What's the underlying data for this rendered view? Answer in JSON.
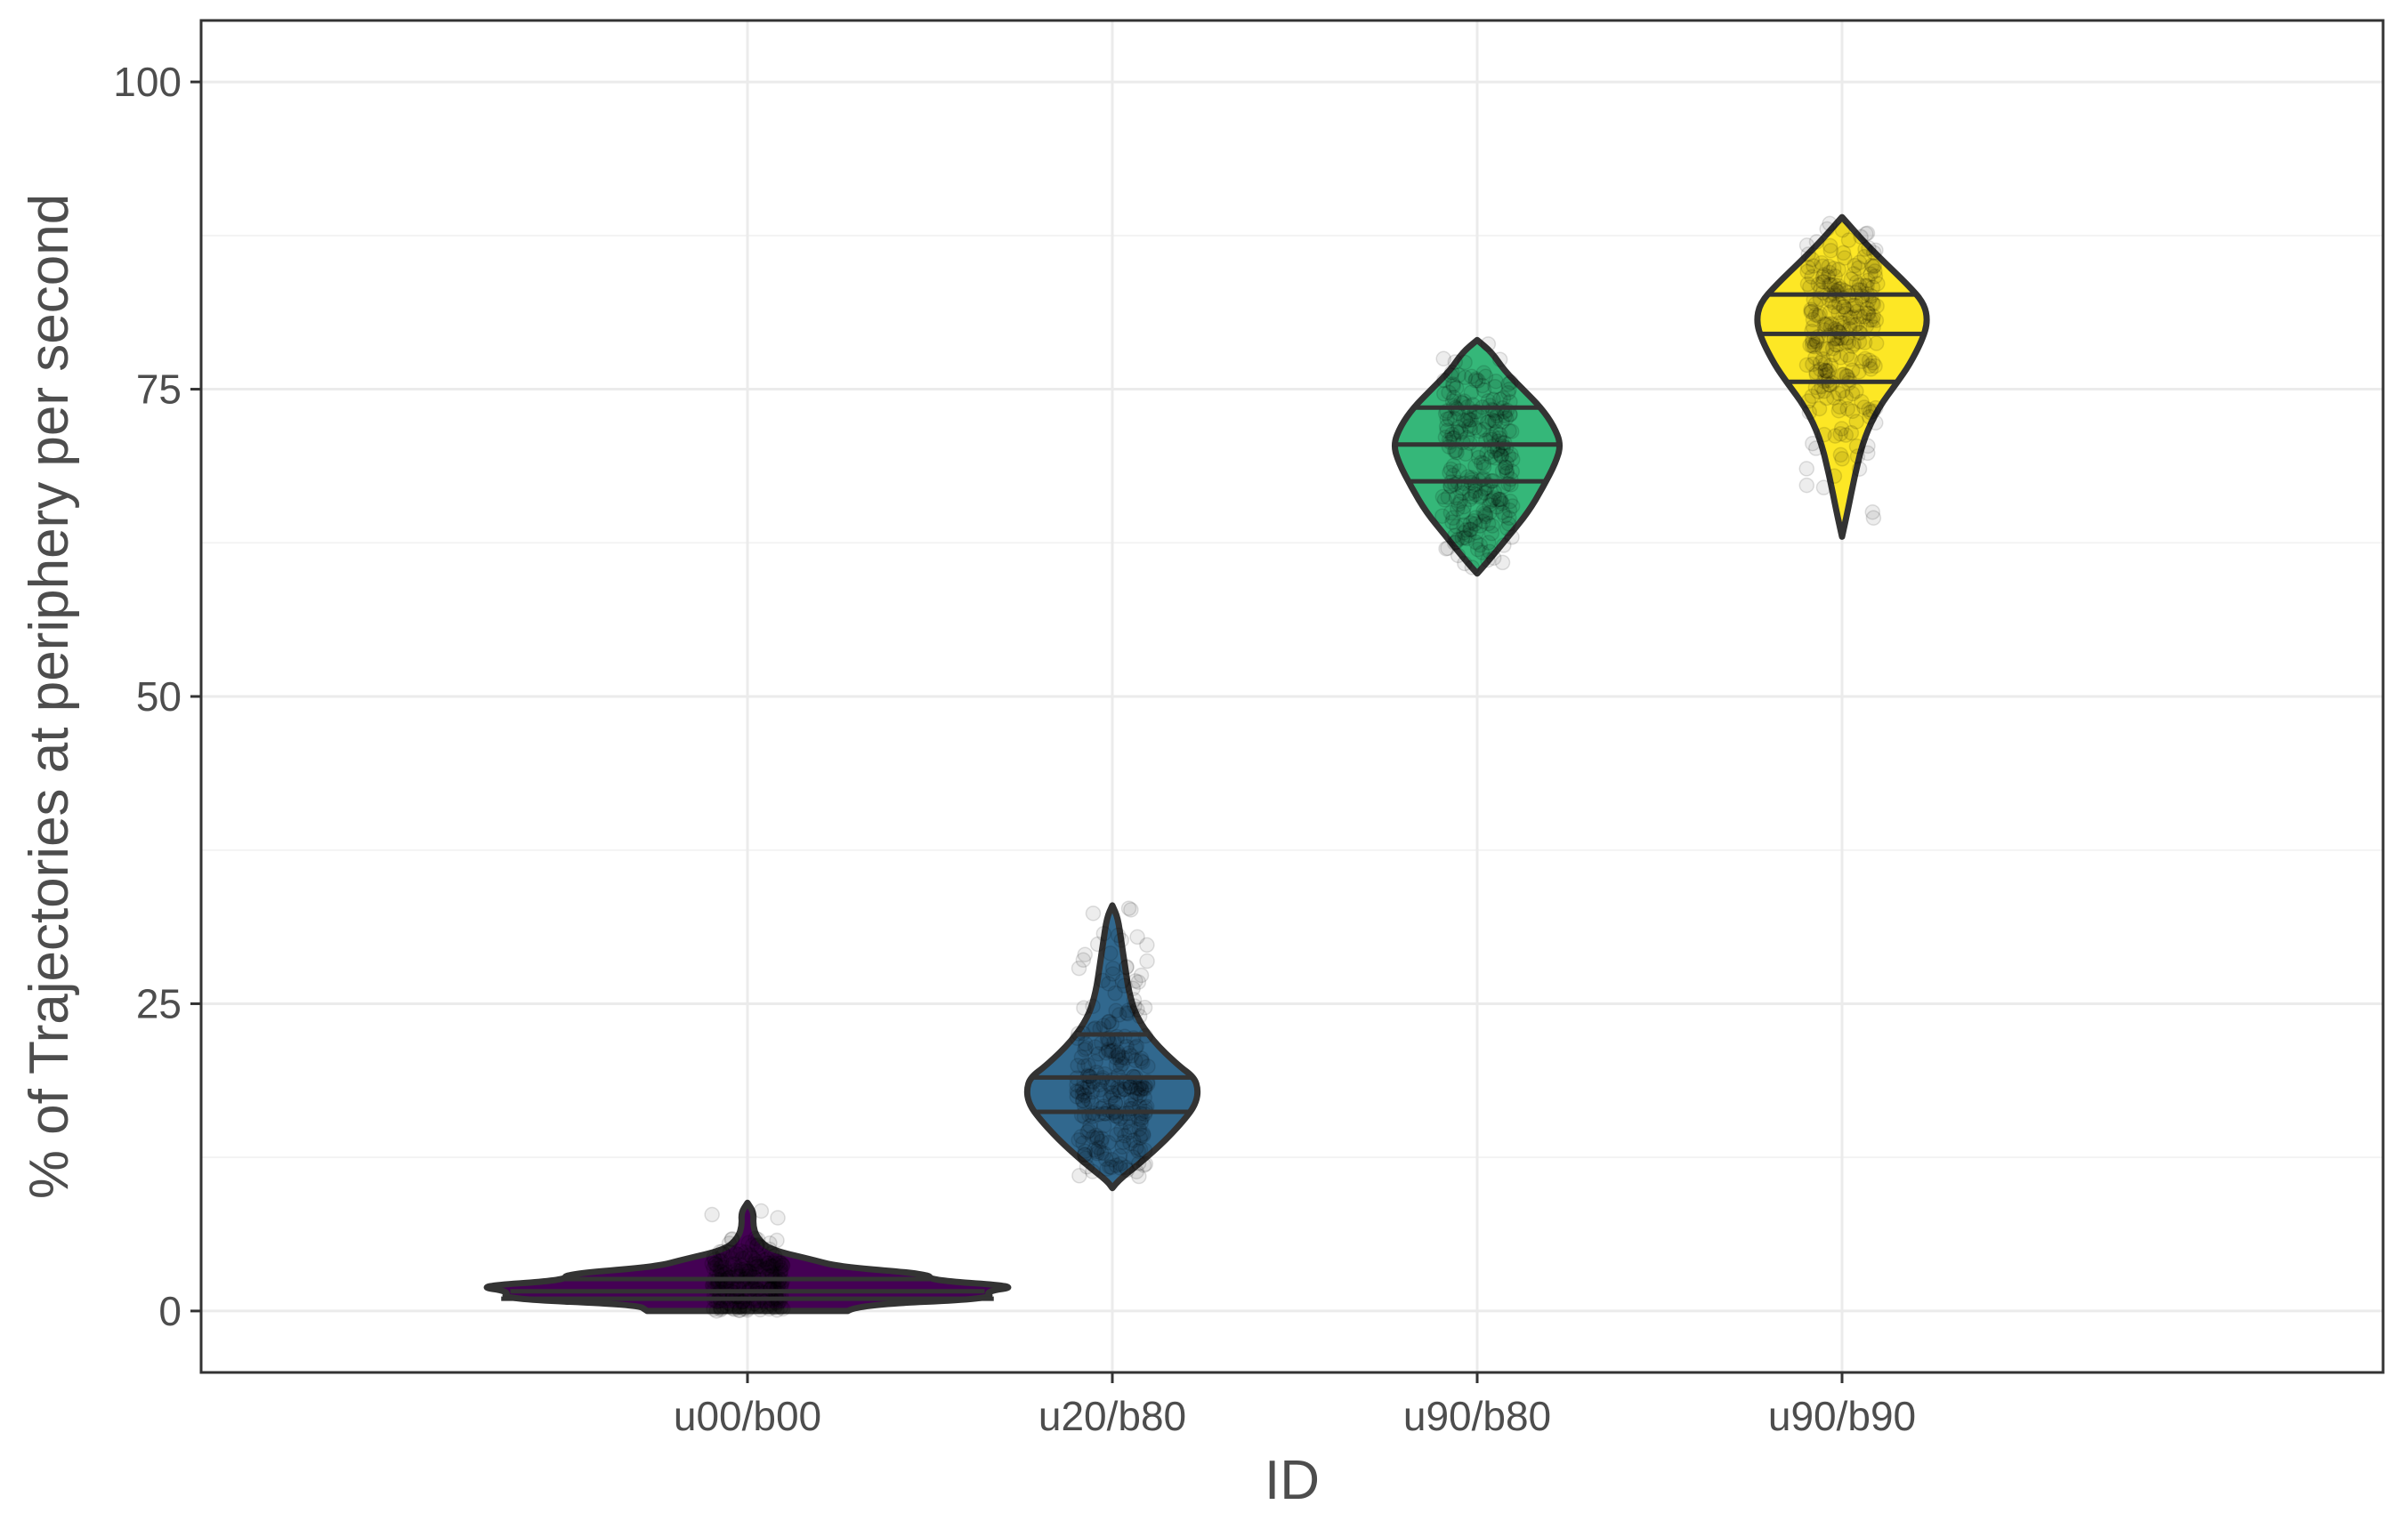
{
  "chart_data": {
    "type": "violin",
    "xlabel": "ID",
    "ylabel": "% of Trajectories at periphery per second",
    "categories": [
      "u00/b00",
      "u20/b80",
      "u90/b80",
      "u90/b90"
    ],
    "ylim": [
      -5,
      105
    ],
    "yticks": [
      0,
      25,
      50,
      75,
      100
    ],
    "yticks_minor": [
      12.5,
      37.5,
      62.5,
      87.5
    ],
    "grid": true,
    "legend": "none",
    "series": [
      {
        "category": "u00/b00",
        "color": "#440154",
        "quantiles": [
          1.0,
          1.6,
          2.6
        ],
        "profile": [
          {
            "y": 0.0,
            "w": 0.55
          },
          {
            "y": 0.5,
            "w": 0.6
          },
          {
            "y": 1.0,
            "w": 1.35
          },
          {
            "y": 1.6,
            "w": 1.3
          },
          {
            "y": 2.0,
            "w": 1.5
          },
          {
            "y": 2.5,
            "w": 1.0
          },
          {
            "y": 3.0,
            "w": 1.0
          },
          {
            "y": 3.6,
            "w": 0.5
          },
          {
            "y": 4.2,
            "w": 0.35
          },
          {
            "y": 5.0,
            "w": 0.12
          },
          {
            "y": 6.0,
            "w": 0.05
          },
          {
            "y": 7.0,
            "w": 0.03
          },
          {
            "y": 8.0,
            "w": 0.035
          },
          {
            "y": 8.8,
            "w": 0.0
          }
        ]
      },
      {
        "category": "u20/b80",
        "color": "#31688e",
        "quantiles": [
          16.2,
          19.0,
          22.5
        ],
        "profile": [
          {
            "y": 10.0,
            "w": 0.0
          },
          {
            "y": 10.6,
            "w": 0.03
          },
          {
            "y": 12.0,
            "w": 0.15
          },
          {
            "y": 14.0,
            "w": 0.3
          },
          {
            "y": 16.0,
            "w": 0.42
          },
          {
            "y": 17.0,
            "w": 0.46
          },
          {
            "y": 18.0,
            "w": 0.47
          },
          {
            "y": 19.0,
            "w": 0.45
          },
          {
            "y": 20.0,
            "w": 0.36
          },
          {
            "y": 22.0,
            "w": 0.22
          },
          {
            "y": 24.0,
            "w": 0.13
          },
          {
            "y": 26.0,
            "w": 0.09
          },
          {
            "y": 28.0,
            "w": 0.07
          },
          {
            "y": 30.0,
            "w": 0.05
          },
          {
            "y": 32.0,
            "w": 0.03
          },
          {
            "y": 33.0,
            "w": 0.0
          }
        ]
      },
      {
        "category": "u90/b80",
        "color": "#35b779",
        "quantiles": [
          67.5,
          70.5,
          73.5
        ],
        "profile": [
          {
            "y": 60.0,
            "w": 0.0
          },
          {
            "y": 61.0,
            "w": 0.06
          },
          {
            "y": 63.0,
            "w": 0.17
          },
          {
            "y": 65.0,
            "w": 0.28
          },
          {
            "y": 67.0,
            "w": 0.36
          },
          {
            "y": 69.0,
            "w": 0.43
          },
          {
            "y": 70.5,
            "w": 0.46
          },
          {
            "y": 72.0,
            "w": 0.42
          },
          {
            "y": 73.5,
            "w": 0.35
          },
          {
            "y": 75.0,
            "w": 0.25
          },
          {
            "y": 76.5,
            "w": 0.15
          },
          {
            "y": 78.0,
            "w": 0.08
          },
          {
            "y": 79.0,
            "w": 0.0
          }
        ]
      },
      {
        "category": "u90/b90",
        "color": "#fde725",
        "quantiles": [
          75.6,
          79.5,
          82.7
        ],
        "profile": [
          {
            "y": 63.0,
            "w": 0.0
          },
          {
            "y": 65.0,
            "w": 0.03
          },
          {
            "y": 68.0,
            "w": 0.07
          },
          {
            "y": 71.0,
            "w": 0.12
          },
          {
            "y": 73.5,
            "w": 0.2
          },
          {
            "y": 75.5,
            "w": 0.3
          },
          {
            "y": 77.0,
            "w": 0.37
          },
          {
            "y": 79.0,
            "w": 0.44
          },
          {
            "y": 80.5,
            "w": 0.47
          },
          {
            "y": 82.0,
            "w": 0.45
          },
          {
            "y": 83.5,
            "w": 0.36
          },
          {
            "y": 85.5,
            "w": 0.22
          },
          {
            "y": 87.0,
            "w": 0.12
          },
          {
            "y": 88.0,
            "w": 0.06
          },
          {
            "y": 89.0,
            "w": 0.0
          }
        ]
      }
    ]
  }
}
